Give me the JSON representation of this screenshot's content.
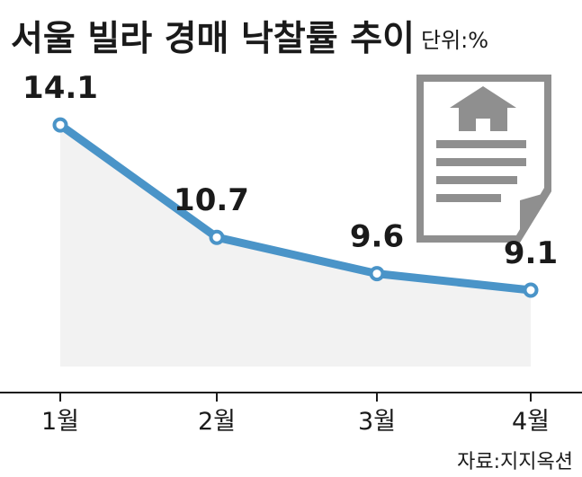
{
  "header": {
    "title": "서울 빌라 경매 낙찰률 추이",
    "unit": "단위:%"
  },
  "footer": {
    "source": "자료:지지옥션"
  },
  "decoration": {
    "icon": "document-house-icon"
  },
  "colors": {
    "line": "#4a94c8",
    "marker_fill": "#ffffff",
    "area_fill": "#f2f2f2",
    "icon_gray": "#8f8f8f",
    "text": "#1a1a1a"
  },
  "chart_data": {
    "type": "line",
    "title": "서울 빌라 경매 낙찰률 추이",
    "unit": "단위:%",
    "categories": [
      "1월",
      "2월",
      "3월",
      "4월"
    ],
    "values": [
      14.1,
      10.7,
      9.6,
      9.1
    ],
    "data_labels": [
      "14.1",
      "10.7",
      "9.6",
      "9.1"
    ],
    "ylim": [
      6,
      15.3
    ],
    "grid": false,
    "area_shaded": true
  }
}
